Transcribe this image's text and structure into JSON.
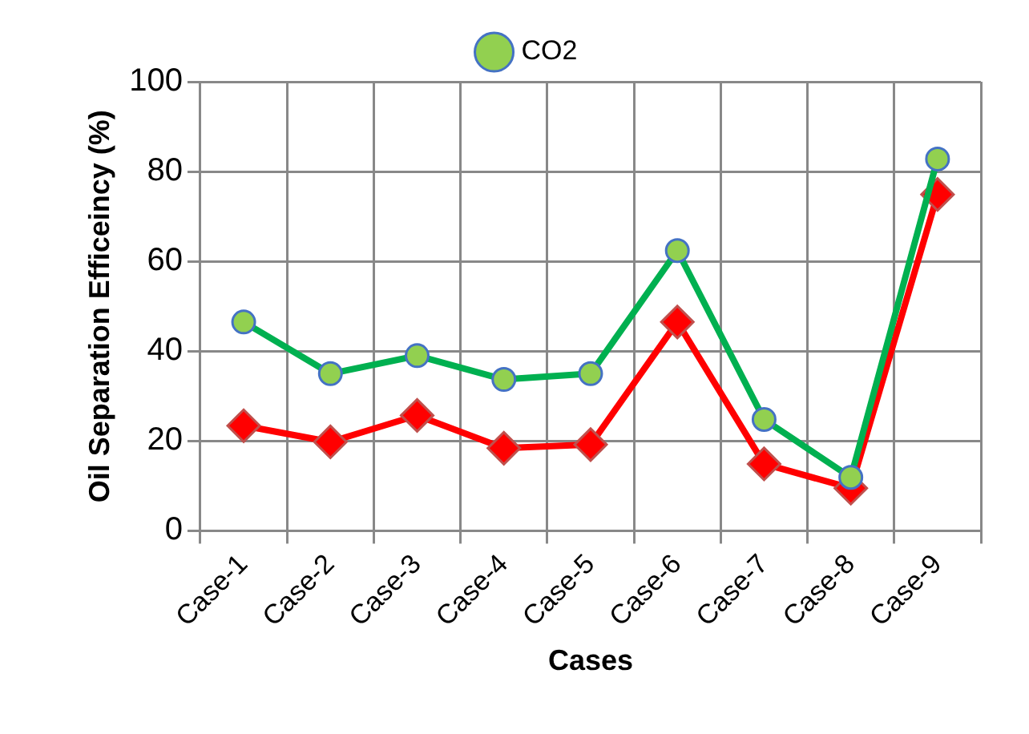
{
  "chart_data": {
    "type": "line",
    "xlabel": "Cases",
    "ylabel": "Oil Separation Efficeincy (%)",
    "categories": [
      "Case-1",
      "Case-2",
      "Case-3",
      "Case-4",
      "Case-5",
      "Case-6",
      "Case-7",
      "Case-8",
      "Case-9"
    ],
    "series": [
      {
        "name": "CO2",
        "color": "#00b050",
        "marker": "circle",
        "values": [
          46.5,
          35,
          39,
          33.7,
          35,
          62.4,
          24.8,
          11.9,
          82.8
        ]
      },
      {
        "color": "#ff0000",
        "marker": "diamond",
        "values": [
          23.4,
          19.8,
          25.7,
          18.4,
          19.2,
          46.5,
          14.9,
          9.5,
          74.9
        ]
      }
    ],
    "ylim": [
      0,
      100
    ],
    "yticks": [
      0,
      20,
      40,
      60,
      80,
      100
    ],
    "grid": true,
    "legend": "top"
  }
}
